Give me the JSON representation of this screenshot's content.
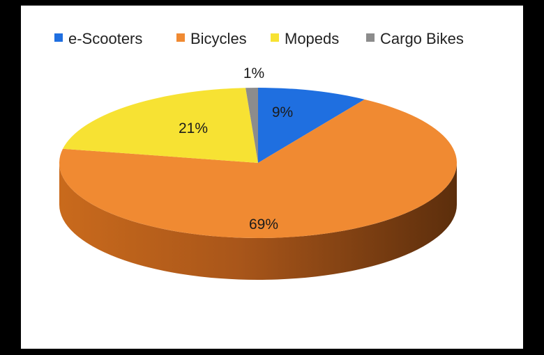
{
  "chart_data": {
    "type": "pie",
    "variant": "3d",
    "title": "",
    "legend_position": "top",
    "categories": [
      "e-Scooters",
      "Bicycles",
      "Mopeds",
      "Cargo Bikes"
    ],
    "values": [
      9,
      69,
      21,
      1
    ],
    "labels": [
      "9%",
      "69%",
      "21%",
      "1%"
    ],
    "colors": [
      "#1f6fe0",
      "#f08a32",
      "#f7e233",
      "#8c8c8c"
    ]
  }
}
